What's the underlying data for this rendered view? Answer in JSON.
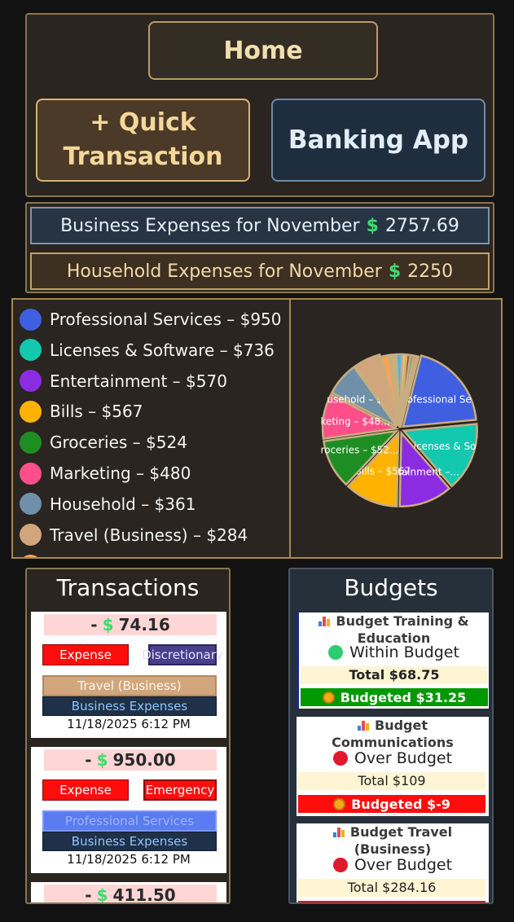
{
  "nav": {
    "home_label": "Home",
    "quick_transaction_label": "+ Quick Transaction",
    "banking_app_label": "Banking App"
  },
  "summary": {
    "business_label": "Business Expenses for November",
    "business_amount": "2757.69",
    "household_label": "Household Expenses for November",
    "household_amount": "2250",
    "currency_symbol": "$"
  },
  "chart_data": {
    "type": "pie",
    "legend": [
      {
        "label": "Professional Services – $950",
        "color": "#3f5fe0"
      },
      {
        "label": "Licenses & Software – $736",
        "color": "#12c9b0"
      },
      {
        "label": "Entertainment – $570",
        "color": "#8b2be2"
      },
      {
        "label": "Bills – $567",
        "color": "#ffb300"
      },
      {
        "label": "Groceries – $524",
        "color": "#1e8e24"
      },
      {
        "label": "Marketing – $480",
        "color": "#ff4f8b"
      },
      {
        "label": "Household – $361",
        "color": "#6f90a8"
      },
      {
        "label": "Travel (Business) – $284",
        "color": "#d2a67c"
      }
    ],
    "slices": [
      {
        "name": "Professional Services",
        "value": 950,
        "color": "#3f5fe0",
        "label": "Professional Se"
      },
      {
        "name": "Licenses & Software",
        "value": 736,
        "color": "#12c9b0",
        "label": "Licenses & So"
      },
      {
        "name": "Entertainment",
        "value": 570,
        "color": "#8b2be2",
        "label": "Entertainment –..."
      },
      {
        "name": "Bills",
        "value": 567,
        "color": "#ffb300",
        "label": "Bills – $567"
      },
      {
        "name": "Groceries",
        "value": 524,
        "color": "#1e8e24",
        "label": "roceries – $52..."
      },
      {
        "name": "Marketing",
        "value": 480,
        "color": "#ff4f8b",
        "label": "keting – $48..."
      },
      {
        "name": "Household",
        "value": 361,
        "color": "#6f90a8",
        "label": "usehold – $36..."
      },
      {
        "name": "Travel (Business)",
        "value": 284,
        "color": "#d2a67c",
        "label": ""
      },
      {
        "name": "",
        "value": 90,
        "color": "#f5a35c",
        "label": ""
      },
      {
        "name": "",
        "value": 70,
        "color": "#c8b27a",
        "label": ""
      },
      {
        "name": "",
        "value": 60,
        "color": "#4bb5e8",
        "label": ""
      },
      {
        "name": "",
        "value": 48,
        "color": "#e9c46a",
        "label": ""
      },
      {
        "name": "",
        "value": 40,
        "color": "#a0522d",
        "label": ""
      },
      {
        "name": "",
        "value": 34,
        "color": "#3cb371",
        "label": ""
      },
      {
        "name": "",
        "value": 28,
        "color": "#ff7043",
        "label": ""
      },
      {
        "name": "",
        "value": 22,
        "color": "#9c6ade",
        "label": ""
      }
    ]
  },
  "transactions": {
    "title": "Transactions",
    "items": [
      {
        "sign": "-",
        "currency": "$",
        "amount": "74.16",
        "type": "Expense",
        "tag": "Discretionary",
        "category": "Travel (Business)",
        "category_bg": "#d2a67c",
        "category_color": "#fff6e8",
        "group": "Business Expenses",
        "date": "11/18/2025 6:12 PM"
      },
      {
        "sign": "-",
        "currency": "$",
        "amount": "950.00",
        "type": "Expense",
        "tag": "Emergency",
        "category": "Professional Services",
        "category_bg": "#5a7cf0",
        "category_color": "#9fb3ff",
        "group": "Business Expenses",
        "date": "11/18/2025 6:12 PM"
      },
      {
        "sign": "-",
        "currency": "$",
        "amount": "411.50"
      }
    ]
  },
  "budgets": {
    "title": "Budgets",
    "items": [
      {
        "name": "Budget Training & Education",
        "status": "Within Budget",
        "status_color": "#2ecc71",
        "total": "Total $68.75",
        "budgeted": "Budgeted $31.25",
        "budgeted_bg": "#009900"
      },
      {
        "name": "Budget Communications",
        "status": "Over Budget",
        "status_color": "#e0192c",
        "total": "Total $109",
        "budgeted": "Budgeted $-9",
        "budgeted_bg": "#ff0d0d"
      },
      {
        "name": "Budget Travel (Business)",
        "status": "Over Budget",
        "status_color": "#e0192c",
        "total": "Total $284.16",
        "budgeted": "",
        "budgeted_bg": "#ff0d0d"
      }
    ]
  }
}
